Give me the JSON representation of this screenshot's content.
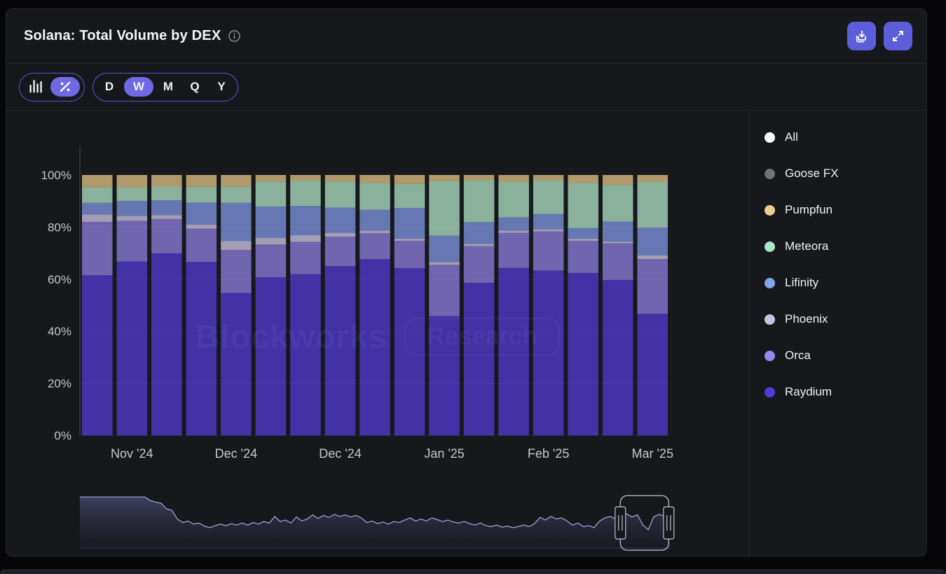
{
  "header": {
    "title": "Solana: Total Volume by DEX",
    "icons": {
      "info": "info-circle",
      "export": "download-tray",
      "expand": "diagonal-arrows"
    }
  },
  "toolbar": {
    "chart_types": [
      {
        "name": "bars",
        "icon": "bar-chart-icon",
        "selected": false
      },
      {
        "name": "percent",
        "icon": "percent-icon",
        "selected": true
      }
    ],
    "ranges": [
      {
        "label": "D",
        "selected": false
      },
      {
        "label": "W",
        "selected": true
      },
      {
        "label": "M",
        "selected": false
      },
      {
        "label": "Q",
        "selected": false
      },
      {
        "label": "Y",
        "selected": false
      }
    ]
  },
  "legend": {
    "items": [
      {
        "label": "All",
        "color": "#ffffff"
      },
      {
        "label": "Goose FX",
        "color": "#717178"
      },
      {
        "label": "Pumpfun",
        "color": "#eccb90"
      },
      {
        "label": "Meteora",
        "color": "#a9e6c4"
      },
      {
        "label": "Lifinity",
        "color": "#84a4ec"
      },
      {
        "label": "Phoenix",
        "color": "#c9c1e4"
      },
      {
        "label": "Orca",
        "color": "#9489e8"
      },
      {
        "label": "Raydium",
        "color": "#5539da"
      }
    ]
  },
  "watermark": {
    "brand": "Blockworks",
    "badge": "Research"
  },
  "chart_data": {
    "type": "bar",
    "variant": "stacked-100-percent",
    "unit": "%",
    "weeks": 17,
    "y_ticks": [
      "0%",
      "20%",
      "40%",
      "60%",
      "80%",
      "100%"
    ],
    "y_range": [
      0,
      100
    ],
    "x_tick_labels": [
      "Nov '24",
      "Dec '24",
      "Dec '24",
      "Jan '25",
      "Feb '25",
      "Mar '25"
    ],
    "x_tick_bar_indices": [
      1,
      4,
      7,
      10,
      13,
      16
    ],
    "grid": true,
    "legend_position": "right",
    "series": [
      {
        "name": "Raydium",
        "bar_color": "#4431a6",
        "values": [
          61.5,
          66.8,
          69.9,
          66.6,
          54.7,
          60.7,
          61.9,
          65.0,
          67.7,
          64.2,
          45.8,
          58.6,
          64.3,
          63.3,
          62.4,
          59.7,
          46.7
        ]
      },
      {
        "name": "Orca",
        "bar_color": "#7065ae",
        "values": [
          20.5,
          15.6,
          13.2,
          12.8,
          16.5,
          12.6,
          12.4,
          11.3,
          9.9,
          10.5,
          19.7,
          14.1,
          13.5,
          15.0,
          12.3,
          14.1,
          21.0
        ]
      },
      {
        "name": "Phoenix",
        "bar_color": "#a39db6",
        "values": [
          2.8,
          1.9,
          1.5,
          1.6,
          3.4,
          2.5,
          2.6,
          1.5,
          1.1,
          0.9,
          1.1,
          0.9,
          0.9,
          0.9,
          0.9,
          0.7,
          1.4
        ]
      },
      {
        "name": "Lifinity",
        "bar_color": "#6578b4",
        "values": [
          4.5,
          5.7,
          5.7,
          8.4,
          14.7,
          12.1,
          11.2,
          9.7,
          7.9,
          11.7,
          10.1,
          8.3,
          5.0,
          5.8,
          4.0,
          7.6,
          10.7
        ]
      },
      {
        "name": "Meteora",
        "bar_color": "#8ab19c",
        "values": [
          5.9,
          5.3,
          5.4,
          6.1,
          6.3,
          9.6,
          9.9,
          10.0,
          10.3,
          9.3,
          20.9,
          16.1,
          13.6,
          13.0,
          17.3,
          14.1,
          17.5
        ]
      },
      {
        "name": "Pumpfun",
        "bar_color": "#b0996a",
        "values": [
          4.8,
          4.7,
          4.3,
          4.5,
          4.4,
          2.5,
          2.0,
          2.5,
          3.1,
          3.4,
          2.4,
          2.0,
          2.7,
          2.0,
          3.1,
          3.8,
          2.7
        ]
      },
      {
        "name": "Goose FX",
        "bar_color": "#717178",
        "values": [
          0,
          0,
          0,
          0,
          0,
          0,
          0,
          0,
          0,
          0,
          0,
          0,
          0,
          0,
          0,
          0,
          0
        ]
      }
    ],
    "navigator": {
      "values": [
        1,
        1,
        1,
        1,
        1,
        1,
        1,
        1,
        1,
        1,
        1,
        1,
        1,
        0.93,
        0.9,
        0.88,
        0.77,
        0.74,
        0.57,
        0.5,
        0.53,
        0.47,
        0.49,
        0.43,
        0.4,
        0.44,
        0.47,
        0.44,
        0.48,
        0.45,
        0.49,
        0.45,
        0.5,
        0.47,
        0.52,
        0.49,
        0.62,
        0.52,
        0.55,
        0.49,
        0.61,
        0.53,
        0.57,
        0.65,
        0.58,
        0.64,
        0.6,
        0.66,
        0.62,
        0.65,
        0.61,
        0.64,
        0.59,
        0.5,
        0.53,
        0.48,
        0.51,
        0.47,
        0.52,
        0.5,
        0.55,
        0.59,
        0.53,
        0.57,
        0.53,
        0.59,
        0.56,
        0.52,
        0.55,
        0.51,
        0.49,
        0.52,
        0.48,
        0.45,
        0.49,
        0.44,
        0.42,
        0.45,
        0.41,
        0.43,
        0.4,
        0.42,
        0.45,
        0.42,
        0.48,
        0.6,
        0.55,
        0.62,
        0.57,
        0.59,
        0.53,
        0.45,
        0.49,
        0.42,
        0.44,
        0.4,
        0.53,
        0.59,
        0.62,
        0.57,
        0.64,
        0.67,
        0.61,
        0.65,
        0.45,
        0.36,
        0.61,
        0.66,
        0.62,
        0.59
      ],
      "brush_selection": [
        0.916,
        0.998
      ]
    },
    "colors": {
      "accent": "#5c5dd8",
      "axis_text": "#c6c7cd",
      "gridline": "rgba(255,255,255,0.05)"
    }
  }
}
